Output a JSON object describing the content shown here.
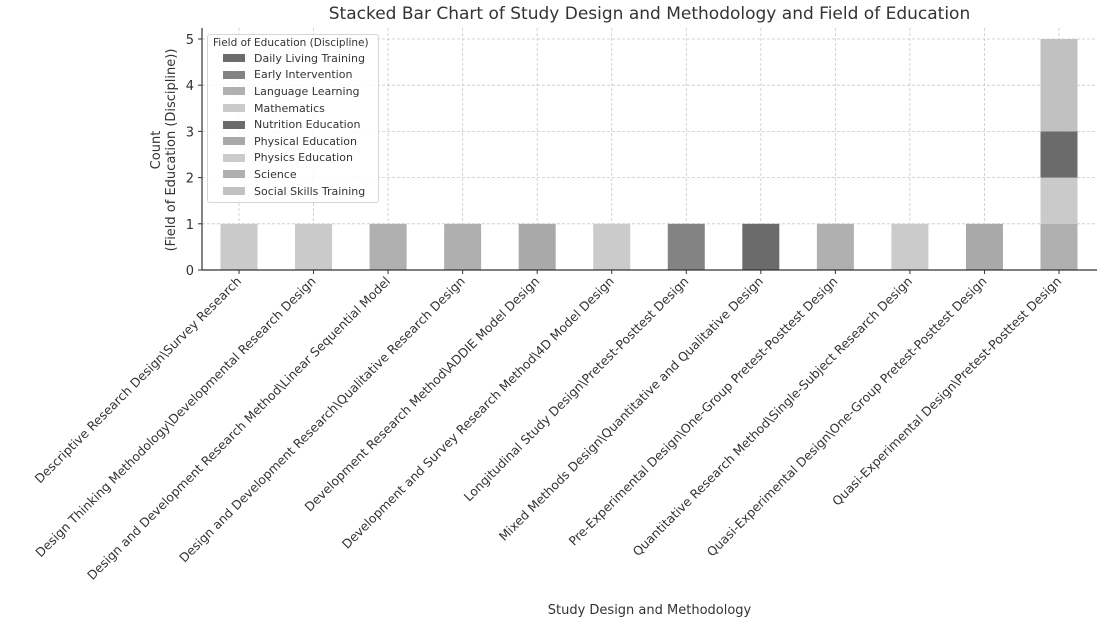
{
  "chart_data": {
    "type": "bar",
    "stacked": true,
    "title": "Stacked Bar Chart of Study Design and Methodology and Field of Education",
    "xlabel": "Study Design and Methodology",
    "ylabel_lines": [
      "Count",
      "(Field of Education (Discipline))"
    ],
    "ylim": [
      0,
      5.25
    ],
    "yticks": [
      0,
      1,
      2,
      3,
      4,
      5
    ],
    "grid": true,
    "legend_title": "Field of Education (Discipline)",
    "legend_position": "top-left",
    "categories": [
      "Descriptive Research Design\\Survey Research",
      "Design Thinking Methodology\\Developmental Research Design",
      "Design and Development Research Method\\Linear Sequential Model",
      "Design and Development Research\\Qualitative Research Design",
      "Development Research Method\\ADDIE Model Design",
      "Development and Survey Research Method\\4D Model Design",
      "Longitudinal Study Design\\Pretest-Posttest Design",
      "Mixed Methods Design\\Quantitative and Qualitative Design",
      "Pre-Experimental Design\\One-Group Pretest-Posttest Design",
      "Quantitative Research Method\\Single-Subject Research Design",
      "Quasi-Experimental Design\\One-Group Pretest-Posttest Design",
      "Quasi-Experimental Design\\Pretest-Posttest Design"
    ],
    "series": [
      {
        "name": "Daily Living Training",
        "color": "#6b6b6b",
        "values": [
          0,
          0,
          0,
          0,
          0,
          0,
          0,
          1,
          0,
          0,
          0,
          0
        ]
      },
      {
        "name": "Early Intervention",
        "color": "#838383",
        "values": [
          0,
          0,
          0,
          0,
          0,
          0,
          1,
          0,
          0,
          0,
          0,
          0
        ]
      },
      {
        "name": "Language Learning",
        "color": "#b0b0b0",
        "values": [
          0,
          0,
          1,
          0,
          0,
          0,
          0,
          0,
          1,
          0,
          0,
          1
        ]
      },
      {
        "name": "Mathematics",
        "color": "#cacaca",
        "values": [
          1,
          1,
          0,
          0,
          0,
          0,
          0,
          0,
          0,
          0,
          0,
          1
        ]
      },
      {
        "name": "Nutrition Education",
        "color": "#6b6b6b",
        "values": [
          0,
          0,
          0,
          0,
          0,
          0,
          0,
          0,
          0,
          0,
          0,
          1
        ]
      },
      {
        "name": "Physical Education",
        "color": "#a9a9a9",
        "values": [
          0,
          0,
          0,
          0,
          1,
          0,
          0,
          0,
          0,
          0,
          1,
          0
        ]
      },
      {
        "name": "Physics Education",
        "color": "#cbcbcb",
        "values": [
          0,
          0,
          0,
          0,
          0,
          1,
          0,
          0,
          0,
          1,
          0,
          0
        ]
      },
      {
        "name": "Science",
        "color": "#afafaf",
        "values": [
          0,
          0,
          0,
          1,
          0,
          0,
          0,
          0,
          0,
          0,
          0,
          0
        ]
      },
      {
        "name": "Social Skills Training",
        "color": "#c1c1c1",
        "values": [
          0,
          0,
          0,
          0,
          0,
          0,
          0,
          0,
          0,
          0,
          0,
          2
        ]
      }
    ]
  }
}
